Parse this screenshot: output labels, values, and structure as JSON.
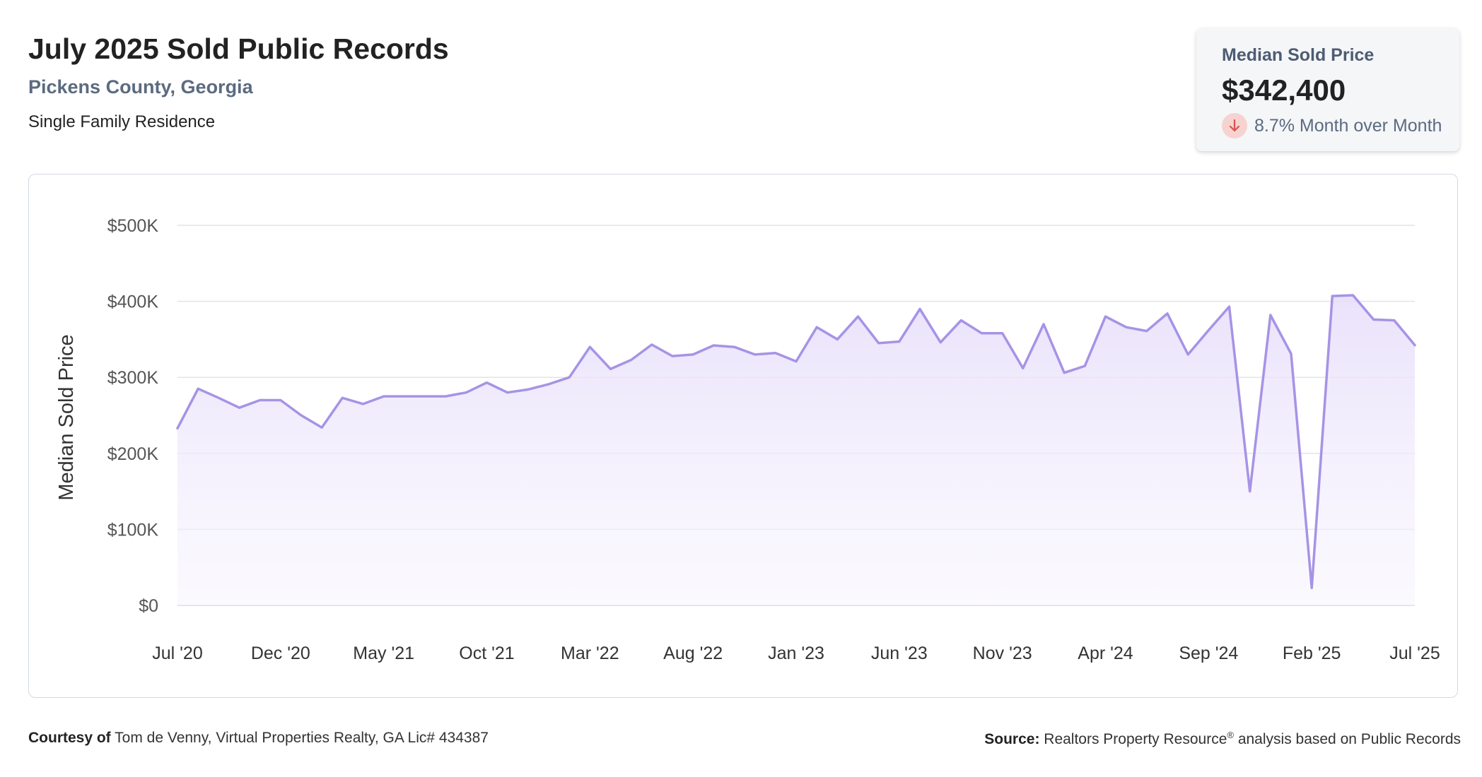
{
  "header": {
    "title": "July 2025 Sold Public Records",
    "location": "Pickens County, Georgia",
    "property_type": "Single Family Residence"
  },
  "summary_card": {
    "label": "Median Sold Price",
    "value": "$342,400",
    "change": "8.7% Month over Month",
    "change_icon": "arrow-down-icon",
    "change_color": "#d9534f"
  },
  "chart_data": {
    "type": "area",
    "ylabel": "Median Sold Price",
    "ylim": [
      0,
      500000
    ],
    "y_ticks": [
      {
        "value": 0,
        "label": "$0"
      },
      {
        "value": 100000,
        "label": "$100K"
      },
      {
        "value": 200000,
        "label": "$200K"
      },
      {
        "value": 300000,
        "label": "$300K"
      },
      {
        "value": 400000,
        "label": "$400K"
      },
      {
        "value": 500000,
        "label": "$500K"
      }
    ],
    "x_ticks": [
      {
        "index": 0,
        "label": "Jul '20"
      },
      {
        "index": 5,
        "label": "Dec '20"
      },
      {
        "index": 10,
        "label": "May '21"
      },
      {
        "index": 15,
        "label": "Oct '21"
      },
      {
        "index": 20,
        "label": "Mar '22"
      },
      {
        "index": 25,
        "label": "Aug '22"
      },
      {
        "index": 30,
        "label": "Jan '23"
      },
      {
        "index": 35,
        "label": "Jun '23"
      },
      {
        "index": 40,
        "label": "Nov '23"
      },
      {
        "index": 45,
        "label": "Apr '24"
      },
      {
        "index": 50,
        "label": "Sep '24"
      },
      {
        "index": 55,
        "label": "Feb '25"
      },
      {
        "index": 60,
        "label": "Jul '25"
      }
    ],
    "x_range": [
      "Jul 2020",
      "Jul 2025"
    ],
    "grid": true,
    "line_color": "#a693e6",
    "fill_color": "#ece6fb",
    "series": [
      {
        "values": [
          233000,
          285000,
          273000,
          260000,
          270000,
          270000,
          250000,
          234000,
          273000,
          265000,
          275000,
          275000,
          275000,
          275000,
          280000,
          293000,
          280000,
          284000,
          291000,
          300000,
          340000,
          311000,
          323000,
          343000,
          328000,
          330000,
          342000,
          340000,
          330000,
          332000,
          321000,
          366000,
          350000,
          380000,
          345000,
          347000,
          390000,
          346000,
          375000,
          358000,
          358000,
          312000,
          370000,
          306000,
          315000,
          380000,
          366000,
          361000,
          384000,
          330000,
          362000,
          393000,
          150000,
          382000,
          331000,
          23000,
          407000,
          408000,
          376000,
          375000,
          342400
        ]
      }
    ]
  },
  "footer": {
    "courtesy_label": "Courtesy of",
    "courtesy_text": " Tom de Venny, Virtual Properties Realty, GA Lic# 434387",
    "source_label": "Source:",
    "source_text_1": " Realtors Property Resource",
    "source_sup": "®",
    "source_text_2": " analysis based on Public Records"
  }
}
